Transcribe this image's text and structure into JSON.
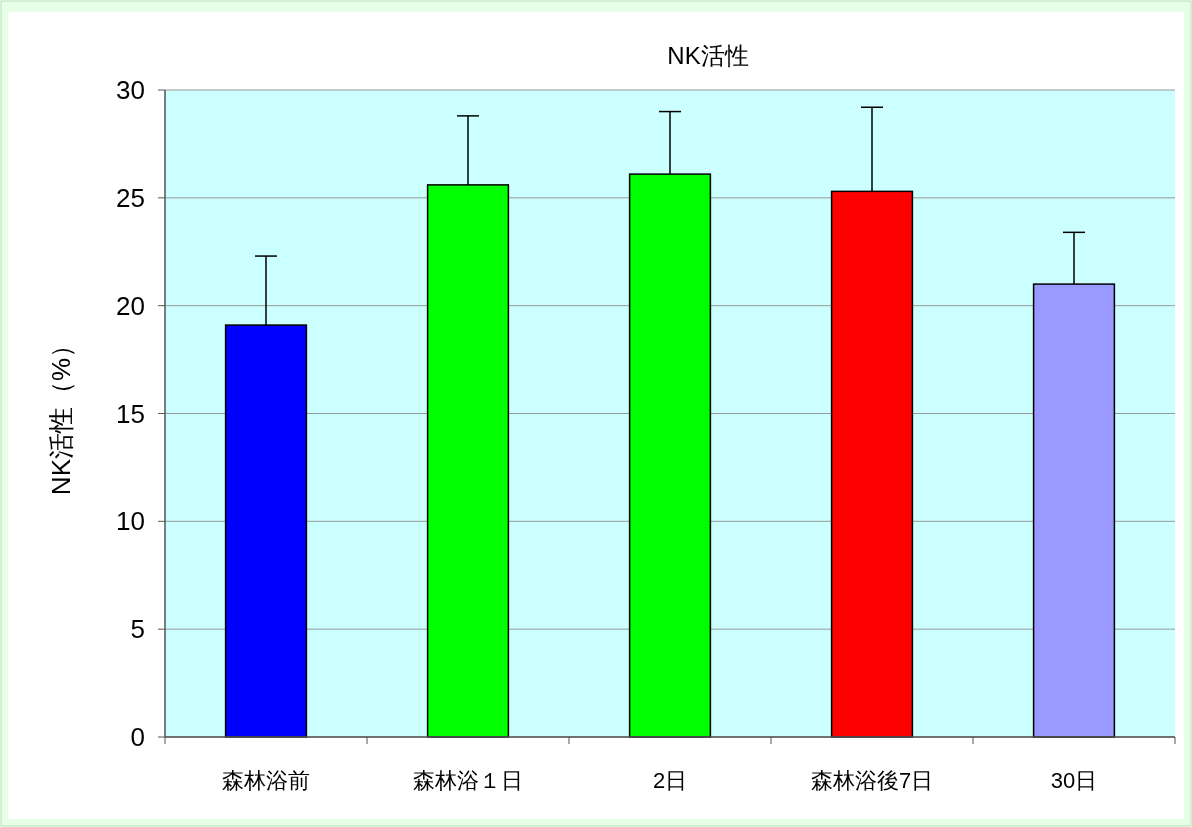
{
  "chart_data": {
    "type": "bar",
    "title": "NK活性",
    "ylabel": "NK活性（%）",
    "categories": [
      "森林浴前",
      "森林浴１日",
      "2日",
      "森林浴後7日",
      "30日"
    ],
    "values": [
      19.1,
      25.6,
      26.1,
      25.3,
      21.0
    ],
    "colors": [
      "#0000ff",
      "#00ff00",
      "#00ff00",
      "#ff0000",
      "#9999ff"
    ],
    "errors": [
      [
        19.1,
        22.3
      ],
      [
        25.6,
        28.8
      ],
      [
        26.1,
        29.0
      ],
      [
        25.3,
        29.2
      ],
      [
        21.0,
        23.4
      ]
    ],
    "ylim": [
      0,
      30
    ],
    "yticks": [
      0,
      5,
      10,
      15,
      20,
      25,
      30
    ],
    "grid": "y"
  }
}
